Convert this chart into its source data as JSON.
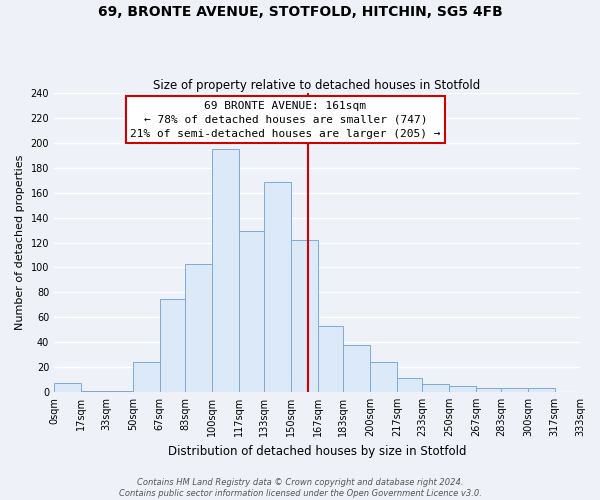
{
  "title": "69, BRONTE AVENUE, STOTFOLD, HITCHIN, SG5 4FB",
  "subtitle": "Size of property relative to detached houses in Stotfold",
  "xlabel": "Distribution of detached houses by size in Stotfold",
  "ylabel": "Number of detached properties",
  "bin_edges": [
    0,
    17,
    33,
    50,
    67,
    83,
    100,
    117,
    133,
    150,
    167,
    183,
    200,
    217,
    233,
    250,
    267,
    283,
    300,
    317,
    333
  ],
  "bin_labels": [
    "0sqm",
    "17sqm",
    "33sqm",
    "50sqm",
    "67sqm",
    "83sqm",
    "100sqm",
    "117sqm",
    "133sqm",
    "150sqm",
    "167sqm",
    "183sqm",
    "200sqm",
    "217sqm",
    "233sqm",
    "250sqm",
    "267sqm",
    "283sqm",
    "300sqm",
    "317sqm",
    "333sqm"
  ],
  "counts": [
    7,
    1,
    1,
    24,
    75,
    103,
    195,
    129,
    169,
    122,
    53,
    38,
    24,
    11,
    6,
    5,
    3,
    3,
    3,
    0
  ],
  "bar_color": "#dce9f8",
  "bar_edge_color": "#7aaad4",
  "property_line_x": 161,
  "property_line_color": "#cc0000",
  "annotation_line1": "69 BRONTE AVENUE: 161sqm",
  "annotation_line2": "← 78% of detached houses are smaller (747)",
  "annotation_line3": "21% of semi-detached houses are larger (205) →",
  "annotation_box_color": "#ffffff",
  "annotation_box_edge_color": "#cc0000",
  "ylim": [
    0,
    240
  ],
  "yticks": [
    0,
    20,
    40,
    60,
    80,
    100,
    120,
    140,
    160,
    180,
    200,
    220,
    240
  ],
  "footer_line1": "Contains HM Land Registry data © Crown copyright and database right 2024.",
  "footer_line2": "Contains public sector information licensed under the Open Government Licence v3.0.",
  "background_color": "#eef2f8",
  "grid_color": "#ffffff",
  "title_fontsize": 10,
  "subtitle_fontsize": 8.5,
  "ylabel_fontsize": 8,
  "xlabel_fontsize": 8.5,
  "tick_fontsize": 7,
  "annotation_fontsize": 8,
  "footer_fontsize": 6
}
